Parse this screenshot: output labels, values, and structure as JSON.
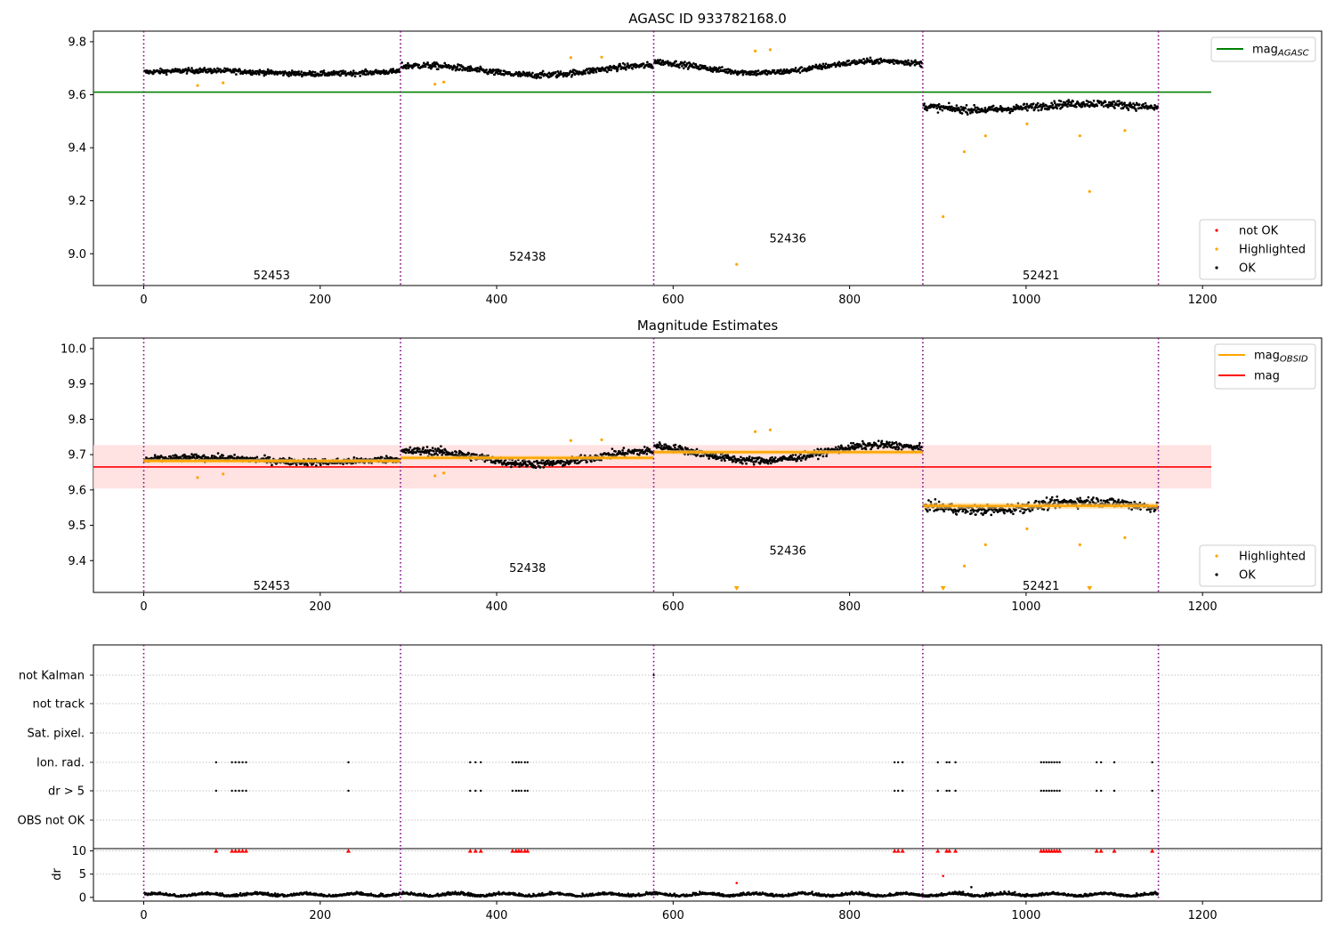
{
  "figure": {
    "width": 1500,
    "height": 1050,
    "background": "#ffffff"
  },
  "chart_data": [
    {
      "id": "mag-agasc",
      "type": "scatter",
      "title": "AGASC ID 933782168.0",
      "xlim": [
        -57,
        1335
      ],
      "ylim": [
        8.88,
        9.84
      ],
      "x_ticks": [
        0,
        200,
        400,
        600,
        800,
        1000,
        1200
      ],
      "y_ticks": [
        9.0,
        9.2,
        9.4,
        9.6,
        9.8
      ],
      "y_tick_labels": [
        "9.0",
        "9.2",
        "9.4",
        "9.6",
        "9.8"
      ],
      "obs_boundaries": [
        0,
        291,
        578,
        883,
        1150
      ],
      "obs_labels": [
        {
          "text": "52453",
          "x": 145,
          "y": 8.92
        },
        {
          "text": "52438",
          "x": 435,
          "y": 8.99
        },
        {
          "text": "52436",
          "x": 730,
          "y": 9.06
        },
        {
          "text": "52421",
          "x": 1017,
          "y": 8.92
        }
      ],
      "reference_lines": [
        {
          "name": "mag_AGASC",
          "value": 9.61,
          "x_range": [
            -57,
            1210
          ],
          "color": "#008000"
        }
      ],
      "segments": [
        {
          "x0": 0,
          "x1": 291,
          "mean": 9.685,
          "amp": 0.006,
          "noise": 0.008
        },
        {
          "x0": 291,
          "x1": 578,
          "mean": 9.692,
          "amp": 0.018,
          "noise": 0.01
        },
        {
          "x0": 578,
          "x1": 883,
          "mean": 9.705,
          "amp": 0.022,
          "noise": 0.009
        },
        {
          "x0": 883,
          "x1": 1150,
          "mean": 9.555,
          "amp": 0.012,
          "noise": 0.012
        }
      ],
      "highlighted_points": [
        {
          "x": 61,
          "y": 9.635
        },
        {
          "x": 90,
          "y": 9.645
        },
        {
          "x": 330,
          "y": 9.64
        },
        {
          "x": 340,
          "y": 9.648
        },
        {
          "x": 484,
          "y": 9.74
        },
        {
          "x": 519,
          "y": 9.742
        },
        {
          "x": 672,
          "y": 8.96
        },
        {
          "x": 693,
          "y": 9.765
        },
        {
          "x": 710,
          "y": 9.77
        },
        {
          "x": 906,
          "y": 9.14
        },
        {
          "x": 930,
          "y": 9.385
        },
        {
          "x": 954,
          "y": 9.445
        },
        {
          "x": 1001,
          "y": 9.49
        },
        {
          "x": 1061,
          "y": 9.445
        },
        {
          "x": 1072,
          "y": 9.235
        },
        {
          "x": 1112,
          "y": 9.465
        }
      ],
      "not_ok_points": [],
      "legends": [
        {
          "position": "upper-right",
          "entries": [
            {
              "type": "line",
              "label": "mag",
              "sub": "AGASC",
              "color": "#008000"
            }
          ]
        },
        {
          "position": "lower-right",
          "entries": [
            {
              "type": "dot",
              "label": "not OK",
              "color": "#ff0000"
            },
            {
              "type": "dot",
              "label": "Highlighted",
              "color": "#ffa500"
            },
            {
              "type": "dot",
              "label": "OK",
              "color": "#000000"
            }
          ]
        }
      ]
    },
    {
      "id": "mag-estimates",
      "type": "scatter",
      "title": "Magnitude Estimates",
      "xlim": [
        -57,
        1335
      ],
      "ylim": [
        9.31,
        10.03
      ],
      "x_ticks": [
        0,
        200,
        400,
        600,
        800,
        1000,
        1200
      ],
      "y_ticks": [
        9.4,
        9.5,
        9.6,
        9.7,
        9.8,
        9.9,
        10.0
      ],
      "y_tick_labels": [
        "9.4",
        "9.5",
        "9.6",
        "9.7",
        "9.8",
        "9.9",
        "10.0"
      ],
      "obs_boundaries": [
        0,
        291,
        578,
        883,
        1150
      ],
      "obs_labels": [
        {
          "text": "52453",
          "x": 145,
          "y": 9.33
        },
        {
          "text": "52438",
          "x": 435,
          "y": 9.38
        },
        {
          "text": "52436",
          "x": 730,
          "y": 9.43
        },
        {
          "text": "52421",
          "x": 1017,
          "y": 9.33
        }
      ],
      "mag_band": {
        "low": 9.604,
        "high": 9.727,
        "x_range": [
          -57,
          1210
        ],
        "color": "#ffdddd"
      },
      "reference_lines": [
        {
          "name": "mag",
          "value": 9.665,
          "x_range": [
            -57,
            1210
          ],
          "color": "#ff0000"
        }
      ],
      "obsid_means": [
        {
          "x0": 0,
          "x1": 291,
          "value": 9.682,
          "err": 0.006
        },
        {
          "x0": 291,
          "x1": 578,
          "value": 9.691,
          "err": 0.006
        },
        {
          "x0": 578,
          "x1": 883,
          "value": 9.707,
          "err": 0.006
        },
        {
          "x0": 883,
          "x1": 1150,
          "value": 9.555,
          "err": 0.008
        }
      ],
      "obsid_color": "#ffa500",
      "segments": [
        {
          "x0": 0,
          "x1": 291,
          "mean": 9.685,
          "amp": 0.006,
          "noise": 0.008
        },
        {
          "x0": 291,
          "x1": 578,
          "mean": 9.692,
          "amp": 0.018,
          "noise": 0.01
        },
        {
          "x0": 578,
          "x1": 883,
          "mean": 9.705,
          "amp": 0.022,
          "noise": 0.009
        },
        {
          "x0": 883,
          "x1": 1150,
          "mean": 9.555,
          "amp": 0.012,
          "noise": 0.012
        }
      ],
      "highlighted_points": [
        {
          "x": 61,
          "y": 9.635
        },
        {
          "x": 90,
          "y": 9.645
        },
        {
          "x": 330,
          "y": 9.64
        },
        {
          "x": 340,
          "y": 9.648
        },
        {
          "x": 484,
          "y": 9.74
        },
        {
          "x": 519,
          "y": 9.742
        },
        {
          "x": 693,
          "y": 9.765
        },
        {
          "x": 710,
          "y": 9.77
        },
        {
          "x": 930,
          "y": 9.385
        },
        {
          "x": 954,
          "y": 9.445
        },
        {
          "x": 1001,
          "y": 9.49
        },
        {
          "x": 1061,
          "y": 9.445
        },
        {
          "x": 1112,
          "y": 9.465
        }
      ],
      "out_of_range_markers": [
        {
          "x": 672
        },
        {
          "x": 906
        },
        {
          "x": 1072
        }
      ],
      "legends": [
        {
          "position": "upper-right",
          "entries": [
            {
              "type": "line",
              "label": "mag",
              "sub": "OBSID",
              "color": "#ffa500"
            },
            {
              "type": "line",
              "label": "mag",
              "sub": "",
              "color": "#ff0000"
            }
          ]
        },
        {
          "position": "lower-right",
          "entries": [
            {
              "type": "dot",
              "label": "Highlighted",
              "color": "#ffa500"
            },
            {
              "type": "dot",
              "label": "OK",
              "color": "#000000"
            }
          ]
        }
      ]
    },
    {
      "id": "flags",
      "type": "scatter",
      "xlim": [
        -57,
        1335
      ],
      "rows": [
        "not Kalman",
        "not track",
        "Sat. pixel.",
        "Ion. rad.",
        "dr > 5",
        "OBS not OK"
      ],
      "obs_boundaries": [
        0,
        291,
        578,
        883,
        1150
      ],
      "flagged_x": [
        82,
        100,
        104,
        108,
        112,
        116,
        232,
        370,
        376,
        382,
        418,
        422,
        425,
        428,
        432,
        435,
        851,
        855,
        860,
        900,
        910,
        913,
        920,
        1017,
        1020,
        1023,
        1026,
        1029,
        1032,
        1035,
        1038,
        1080,
        1085,
        1100,
        1143
      ],
      "not_kalman_x": [
        578
      ]
    },
    {
      "id": "dr",
      "type": "scatter",
      "ylabel": "dr",
      "xlim": [
        -57,
        1335
      ],
      "ylim": [
        -0.8,
        10.5
      ],
      "y_ticks": [
        0,
        5,
        10
      ],
      "y_tick_labels": [
        "0",
        "5",
        "10"
      ],
      "x_ticks": [
        0,
        200,
        400,
        600,
        800,
        1000,
        1200
      ],
      "obs_boundaries": [
        0,
        291,
        578,
        883,
        1150
      ],
      "clipped_value": 10,
      "extra_points": [
        {
          "x": 672,
          "y": 3.1
        },
        {
          "x": 906,
          "y": 4.6
        },
        {
          "x": 938,
          "y": 2.2
        }
      ]
    }
  ]
}
